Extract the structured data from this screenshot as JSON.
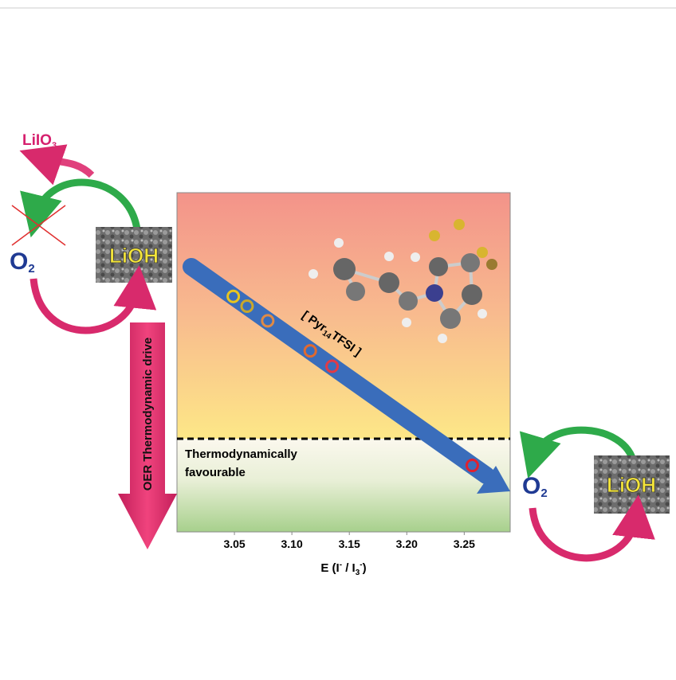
{
  "chart_data": {
    "type": "scatter",
    "x": [
      3.049,
      3.061,
      3.079,
      3.116,
      3.135,
      3.257
    ],
    "colors": [
      "#e8c51e",
      "#c9a72c",
      "#e08a45",
      "#e0692f",
      "#e23a45",
      "#e0202e"
    ],
    "xlim": [
      3.0,
      3.29
    ],
    "xticks": [
      {
        "value": 3.05,
        "label": "3.05"
      },
      {
        "value": 3.1,
        "label": "3.10"
      },
      {
        "value": 3.15,
        "label": "3.15"
      },
      {
        "value": 3.2,
        "label": "3.20"
      },
      {
        "value": 3.25,
        "label": "3.25"
      }
    ],
    "xlabel": [
      "E (I",
      "-",
      " / I",
      "3",
      "-",
      ")"
    ],
    "region_label": [
      "Thermodynamically",
      "favourable"
    ],
    "arrow_label": [
      "[ Pyr",
      "14",
      "TFSI ]"
    ]
  },
  "diagram": {
    "product": [
      "LiIO",
      "3"
    ],
    "oxygen_left": [
      "O",
      "2"
    ],
    "oxygen_right": [
      "O",
      "2"
    ],
    "lioh_left": "LiOH",
    "lioh_right": "LiOH",
    "drive": "OER  Thermodynamic drive"
  }
}
